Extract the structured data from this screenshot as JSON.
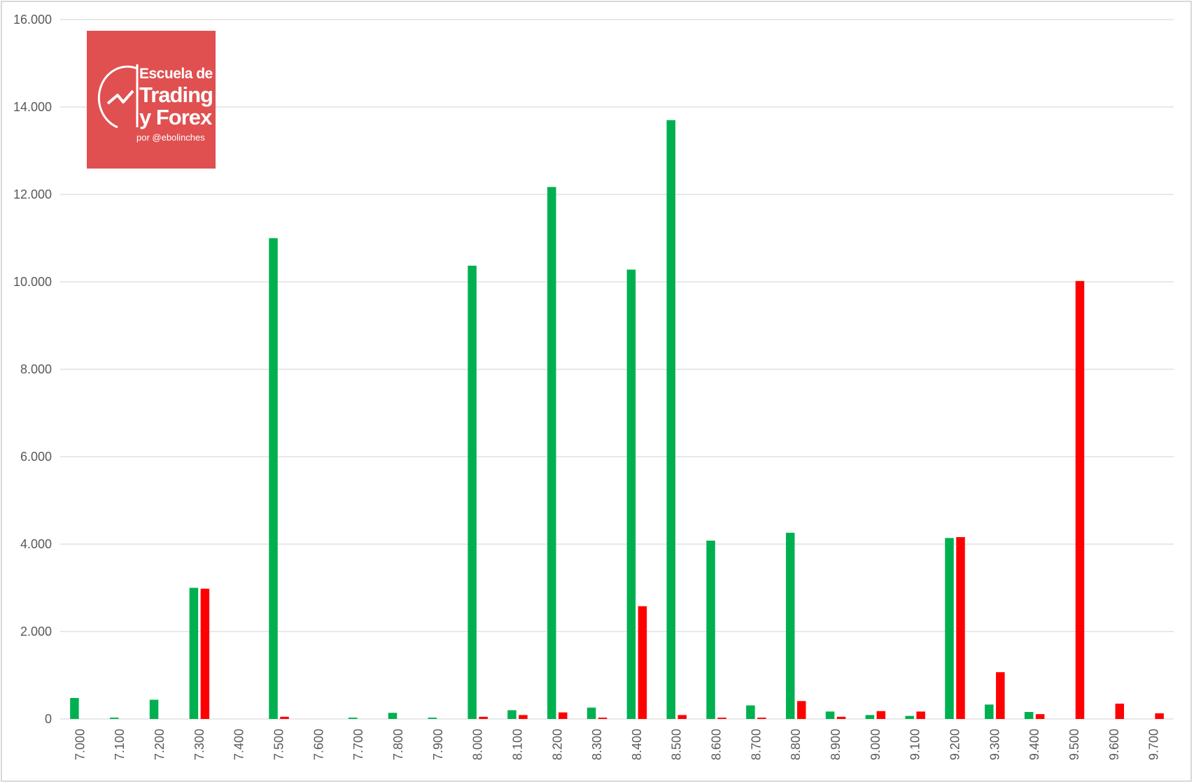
{
  "chart_data": {
    "type": "bar",
    "title": "",
    "xlabel": "",
    "ylabel": "",
    "ylim": [
      0,
      16000
    ],
    "yticks": [
      "0",
      "2.000",
      "4.000",
      "6.000",
      "8.000",
      "10.000",
      "12.000",
      "14.000",
      "16.000"
    ],
    "grid": true,
    "legend": "none",
    "categories": [
      "7.000",
      "7.100",
      "7.200",
      "7.300",
      "7.400",
      "7.500",
      "7.600",
      "7.700",
      "7.800",
      "7.900",
      "8.000",
      "8.100",
      "8.200",
      "8.300",
      "8.400",
      "8.500",
      "8.600",
      "8.700",
      "8.800",
      "8.900",
      "9.000",
      "9.100",
      "9.200",
      "9.300",
      "9.400",
      "9.500",
      "9.600",
      "9.700"
    ],
    "series": [
      {
        "color": "#00b050",
        "values": [
          480,
          30,
          440,
          3000,
          0,
          11000,
          0,
          30,
          140,
          30,
          10370,
          200,
          12170,
          260,
          10280,
          13700,
          4080,
          310,
          4260,
          170,
          90,
          70,
          4140,
          330,
          160,
          0,
          0,
          0
        ]
      },
      {
        "color": "#ff0000",
        "values": [
          0,
          0,
          0,
          2980,
          0,
          50,
          0,
          0,
          0,
          0,
          50,
          90,
          150,
          30,
          2580,
          90,
          30,
          30,
          410,
          50,
          180,
          170,
          4160,
          1070,
          110,
          10020,
          350,
          130
        ]
      }
    ]
  },
  "logo": {
    "line1": "Escuela de",
    "line2": "Trading",
    "line3": "y Forex",
    "line4": "por @ebolinches"
  }
}
